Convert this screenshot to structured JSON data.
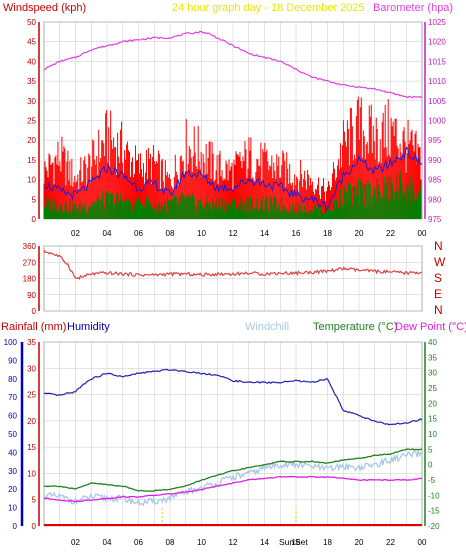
{
  "colors": {
    "wind": "#ff0000",
    "wind_avg": "#1c1cd8",
    "gust_base": "#008000",
    "pressure": "#e040e0",
    "direction": "#e04040",
    "humidity": "#2020b0",
    "temperature": "#208020",
    "dewpoint": "#e020e0",
    "windchill": "#a8c8e8",
    "rain": "#e00000",
    "title": "#e8e800",
    "grid": "#c8c8c8",
    "axis_rain": "#c00000",
    "axis_hum": "#0000c0"
  },
  "chart_data": [
    {
      "type": "line",
      "title": "24 hour graph day - 18 December 2025",
      "left_label": "Windspeed (kph)",
      "right_label": "Barometer (hpa)",
      "x_ticks": [
        "02",
        "04",
        "06",
        "08",
        "10",
        "12",
        "14",
        "16",
        "18",
        "20",
        "22",
        "00"
      ],
      "y_left_ticks": [
        "0",
        "5",
        "10",
        "15",
        "20",
        "25",
        "30",
        "35",
        "40",
        "45",
        "50"
      ],
      "y_left_range": [
        0,
        50
      ],
      "y_right_ticks": [
        "975",
        "980",
        "985",
        "990",
        "995",
        "1000",
        "1005",
        "1010",
        "1015",
        "1020",
        "1025"
      ],
      "y_right_range": [
        975,
        1025
      ],
      "grid": true,
      "series": [
        {
          "key": "pressure",
          "x": [
            0,
            1,
            2,
            3,
            4,
            5,
            6,
            7,
            8,
            9,
            10,
            10.5,
            11,
            12,
            13,
            14,
            15,
            16,
            17,
            18,
            19,
            20,
            21,
            22,
            23,
            24
          ],
          "values": [
            1013,
            1015,
            1016,
            1018,
            1019,
            1020,
            1020.5,
            1021,
            1021,
            1022,
            1022.5,
            1022,
            1021,
            1019,
            1017,
            1016,
            1015,
            1013,
            1011,
            1010,
            1009,
            1008.5,
            1008,
            1007,
            1006,
            1006
          ]
        },
        {
          "key": "gust",
          "x": [
            0,
            1,
            2,
            3,
            4,
            5,
            6,
            7,
            8,
            9,
            10,
            11,
            12,
            13,
            14,
            15,
            16,
            17,
            18,
            19,
            20,
            21,
            22,
            23,
            24
          ],
          "values": [
            13,
            17,
            11,
            15,
            22,
            19,
            14,
            15,
            10,
            20,
            18,
            14,
            13,
            17,
            15,
            14,
            12,
            11,
            7,
            20,
            25,
            22,
            24,
            20,
            16
          ]
        },
        {
          "key": "average",
          "x": [
            0,
            1,
            2,
            3,
            4,
            5,
            6,
            7,
            8,
            9,
            10,
            11,
            12,
            13,
            14,
            15,
            16,
            17,
            18,
            19,
            20,
            21,
            22,
            23,
            24
          ],
          "values": [
            9,
            7,
            6,
            9,
            13,
            11,
            8,
            9,
            6,
            12,
            11,
            8,
            8,
            10,
            9,
            8,
            6,
            5,
            3,
            11,
            15,
            12,
            14,
            17,
            14
          ]
        },
        {
          "key": "lowest",
          "x": [
            0,
            1,
            2,
            3,
            4,
            5,
            6,
            7,
            8,
            9,
            10,
            11,
            12,
            13,
            14,
            15,
            16,
            17,
            18,
            19,
            20,
            21,
            22,
            23,
            24
          ],
          "values": [
            4,
            4,
            3,
            4,
            5,
            5,
            4,
            4,
            4,
            5,
            4,
            4,
            4,
            4,
            4,
            4,
            3,
            3,
            2,
            6,
            7,
            7,
            8,
            9,
            6
          ]
        }
      ]
    },
    {
      "type": "line",
      "y_ticks": [
        "360",
        "270",
        "180",
        "90",
        "0"
      ],
      "y_range": [
        0,
        360
      ],
      "right_labels": [
        "N",
        "W",
        "S",
        "E",
        "N"
      ],
      "grid": true,
      "series": [
        {
          "key": "direction",
          "x": [
            0,
            0.5,
            1,
            1.5,
            2,
            2.5,
            3,
            4,
            5,
            6,
            7,
            8,
            9,
            10,
            11,
            12,
            13,
            14,
            15,
            16,
            17,
            18,
            19,
            20,
            21,
            22,
            23,
            24
          ],
          "values": [
            330,
            320,
            300,
            260,
            180,
            190,
            205,
            210,
            205,
            200,
            200,
            205,
            205,
            200,
            205,
            205,
            210,
            205,
            210,
            210,
            215,
            220,
            235,
            225,
            220,
            215,
            210,
            215
          ]
        }
      ]
    },
    {
      "type": "line",
      "legend": [
        "Rainfall (mm)",
        "Humidity",
        "Windchill",
        "Temperature (°C)",
        "Dew Point (°C)"
      ],
      "x_ticks": [
        "02",
        "04",
        "06",
        "08",
        "10",
        "12",
        "14",
        "16",
        "18",
        "20",
        "22",
        "00"
      ],
      "sun_labels": [
        "Sun",
        "Set"
      ],
      "y_rain_ticks": [
        "0",
        "5",
        "10",
        "15",
        "20",
        "25",
        "30",
        "35"
      ],
      "y_rain_range": [
        0,
        35
      ],
      "y_hum_ticks": [
        "0",
        "10",
        "20",
        "30",
        "40",
        "50",
        "60",
        "70",
        "80",
        "90",
        "100"
      ],
      "y_hum_range": [
        0,
        100
      ],
      "y_temp_ticks": [
        "-20",
        "-15",
        "-10",
        "-5",
        "0",
        "5",
        "10",
        "15",
        "20",
        "25",
        "30",
        "35",
        "40"
      ],
      "y_temp_range": [
        -20,
        40
      ],
      "grid": true,
      "series": [
        {
          "key": "humidity",
          "x": [
            0,
            1,
            2,
            2.5,
            3,
            4,
            5,
            6,
            7,
            8,
            9,
            10,
            11,
            12,
            13,
            14,
            15,
            16,
            17,
            18,
            19,
            20,
            21,
            22,
            23,
            24
          ],
          "values": [
            72,
            71,
            73,
            77,
            80,
            83,
            81,
            83,
            84,
            85,
            84,
            83,
            82,
            79,
            78,
            78,
            78,
            79,
            78,
            80,
            63,
            60,
            57,
            55,
            56,
            58
          ]
        },
        {
          "key": "temperature",
          "x": [
            0,
            1,
            2,
            3,
            4,
            5,
            6,
            7,
            8,
            9,
            10,
            11,
            12,
            13,
            14,
            15,
            16,
            17,
            18,
            19,
            20,
            21,
            22,
            23,
            24
          ],
          "values": [
            -7,
            -7,
            -8,
            -6,
            -6.5,
            -7,
            -8.5,
            -8.5,
            -8,
            -7,
            -5,
            -3.5,
            -2,
            -1,
            0,
            1,
            1,
            1,
            0.5,
            1.5,
            2,
            3,
            3.5,
            5,
            5
          ]
        },
        {
          "key": "windchill",
          "x": [
            0,
            1,
            2,
            3,
            4,
            5,
            6,
            7,
            8,
            9,
            10,
            11,
            12,
            13,
            14,
            15,
            16,
            17,
            18,
            19,
            20,
            21,
            22,
            23,
            24
          ],
          "values": [
            -10,
            -10.5,
            -12,
            -10.5,
            -11,
            -11,
            -12.5,
            -12,
            -11,
            -9,
            -7.5,
            -6,
            -4,
            -3,
            -1,
            0,
            0,
            -0.5,
            -1.5,
            -0.5,
            -1,
            0,
            1.5,
            3,
            3.5
          ]
        },
        {
          "key": "dewpoint",
          "x": [
            0,
            1,
            2,
            3,
            4,
            5,
            6,
            7,
            8,
            9,
            10,
            11,
            12,
            13,
            14,
            15,
            16,
            17,
            18,
            19,
            20,
            21,
            22,
            23,
            24
          ],
          "values": [
            -11,
            -11.5,
            -12,
            -11.5,
            -11,
            -10.5,
            -10.5,
            -10,
            -9.5,
            -9,
            -8,
            -7,
            -6,
            -5,
            -4.5,
            -4,
            -4,
            -4,
            -4,
            -4.5,
            -5,
            -5,
            -5,
            -5,
            -4.5
          ]
        },
        {
          "key": "rain",
          "x": [
            0,
            24
          ],
          "values": [
            0,
            0
          ]
        }
      ]
    }
  ]
}
